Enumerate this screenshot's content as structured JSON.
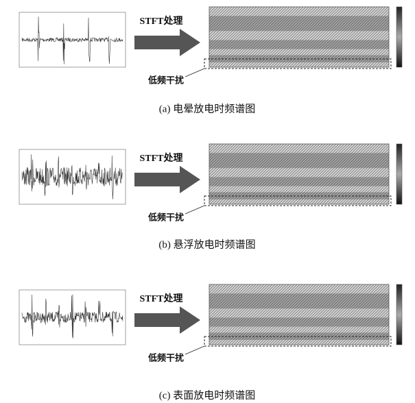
{
  "panels": [
    {
      "step_label": "STFT处理",
      "interference_label": "低频干扰",
      "caption": "(a) 电晕放电时频谱图"
    },
    {
      "step_label": "STFT处理",
      "interference_label": "低频干扰",
      "caption": "(b) 悬浮放电时频谱图"
    },
    {
      "step_label": "STFT处理",
      "interference_label": "低频干扰",
      "caption": "(c) 表面放电时频谱图"
    }
  ]
}
